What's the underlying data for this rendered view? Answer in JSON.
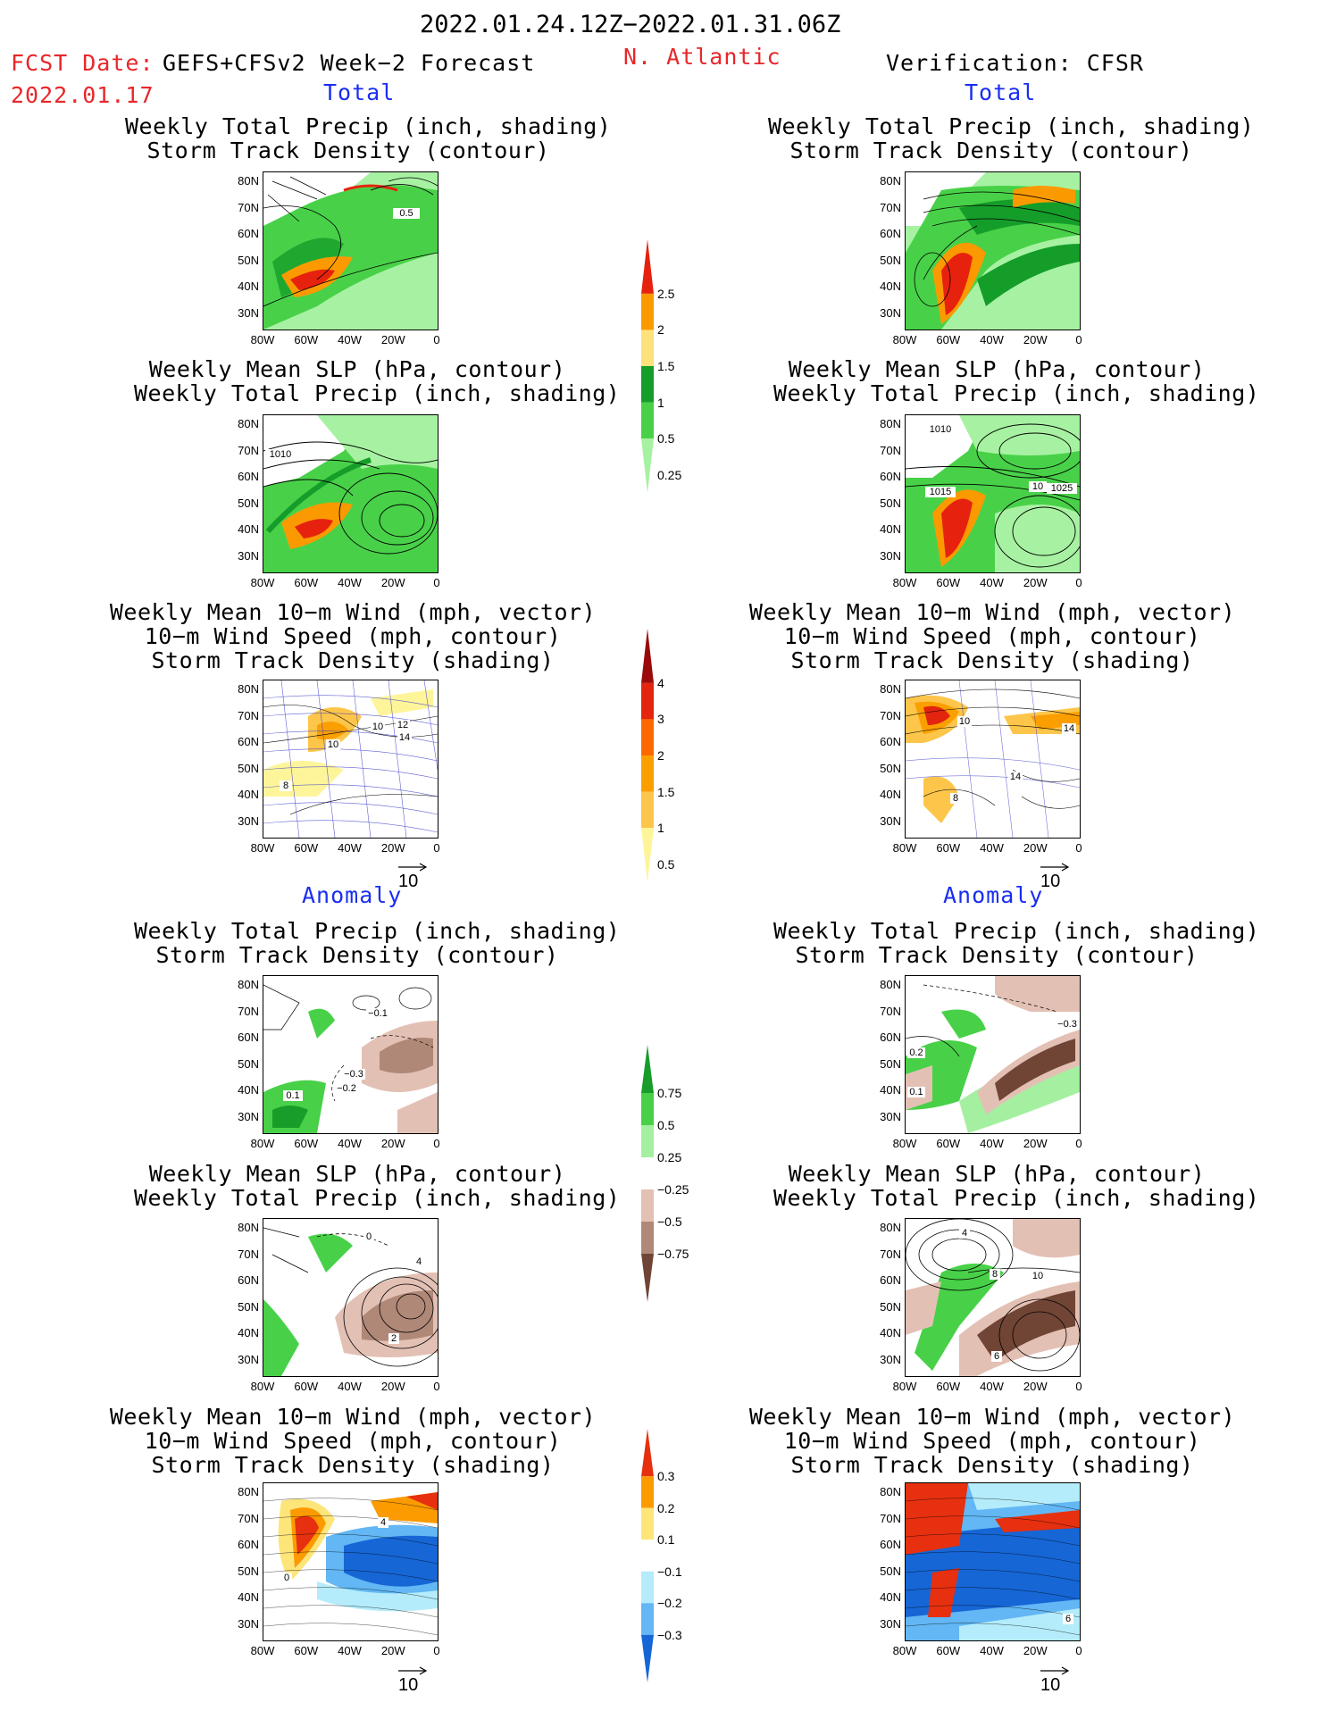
{
  "header": {
    "date_range": "2022.01.24.12Z−2022.01.31.06Z",
    "fcst_label": "FCST Date:",
    "fcst_model": "GEFS+CFSv2 Week−2 Forecast",
    "fcst_date": "2022.01.17",
    "region": "N. Atlantic",
    "verification": "Verification: CFSR"
  },
  "sections": {
    "total": "Total",
    "anomaly": "Anomaly"
  },
  "titles": {
    "precip_track": [
      "Weekly Total Precip (inch, shading)",
      "Storm Track Density (contour)"
    ],
    "slp_precip": [
      "Weekly Mean SLP (hPa, contour)",
      "Weekly Total Precip (inch, shading)"
    ],
    "wind_track": [
      "Weekly Mean 10−m Wind (mph, vector)",
      "10−m Wind Speed (mph, contour)",
      "Storm Track Density (shading)"
    ]
  },
  "axes": {
    "lat_ticks": [
      "80N",
      "70N",
      "60N",
      "50N",
      "40N",
      "30N"
    ],
    "lon_ticks": [
      "80W",
      "60W",
      "40W",
      "20W",
      "0"
    ]
  },
  "vector_reference": "10",
  "colorbars": {
    "total_precip": {
      "labels": [
        "2.5",
        "2",
        "1.5",
        "1",
        "0.5",
        "0.25"
      ],
      "colors": [
        "#e6220f",
        "#fb9a00",
        "#fde17a",
        "#159d2a",
        "#48d148",
        "#a7f2a2"
      ]
    },
    "total_track": {
      "labels": [
        "4",
        "3",
        "2",
        "1.5",
        "1",
        "0.5"
      ],
      "colors": [
        "#9a0a0a",
        "#e3240f",
        "#fb6800",
        "#fb9f00",
        "#fdc64a",
        "#fef59a"
      ]
    },
    "anom_precip": {
      "labels": [
        "0.75",
        "0.5",
        "0.25",
        "−0.25",
        "−0.5",
        "−0.75"
      ],
      "colors": [
        "#189c2a",
        "#48d048",
        "#a4f0a0",
        "#ffffff",
        "#e3c0b4",
        "#b08878",
        "#704536"
      ]
    },
    "anom_track": {
      "labels": [
        "0.3",
        "0.2",
        "0.1",
        "−0.1",
        "−0.2",
        "−0.3"
      ],
      "colors": [
        "#e6300f",
        "#fb9b00",
        "#fde57a",
        "#ffffff",
        "#b4ecfb",
        "#62b7f4",
        "#1666d6"
      ]
    }
  },
  "contour_labels": {
    "left_total_precip": [
      "0.5"
    ],
    "left_total_slp": [
      "1010"
    ],
    "left_total_wind": [
      "10",
      "10",
      "12",
      "14",
      "8"
    ],
    "right_total_slp": [
      "1010",
      "1015",
      "10",
      "1025"
    ],
    "right_total_wind": [
      "10",
      "14",
      "14",
      "8"
    ],
    "left_anom_precip": [
      "−0.1",
      "−0.3",
      "−0.2",
      "0.1"
    ],
    "right_anom_precip": [
      "0.2",
      "0.1",
      "−0.3"
    ],
    "left_anom_slp": [
      "0",
      "4",
      "2"
    ],
    "right_anom_slp": [
      "4",
      "8",
      "10",
      "6"
    ],
    "left_anom_wind": [
      "4",
      "0"
    ],
    "right_anom_wind": [
      "6"
    ]
  }
}
